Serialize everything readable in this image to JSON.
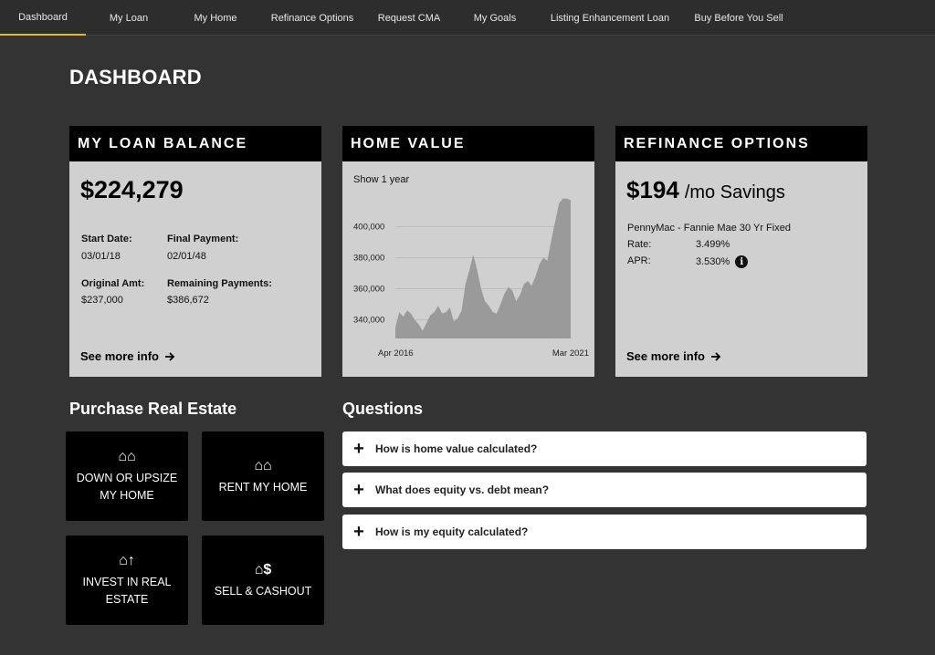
{
  "nav": {
    "items": [
      {
        "label": "Dashboard"
      },
      {
        "label": "My Loan"
      },
      {
        "label": "My Home"
      },
      {
        "label": "Refinance Options"
      },
      {
        "label": "Request CMA"
      },
      {
        "label": "My Goals"
      },
      {
        "label": "Listing Enhancement Loan"
      },
      {
        "label": "Buy Before You Sell"
      }
    ],
    "active_color": "#e7b820"
  },
  "page_title": "DASHBOARD",
  "loan_card": {
    "title": "MY LOAN BALANCE",
    "balance": "$224,279",
    "start_date_label": "Start Date:",
    "start_date": "03/01/18",
    "final_payment_label": "Final Payment:",
    "final_payment": "02/01/48",
    "original_amt_label": "Original Amt:",
    "original_amt": "$237,000",
    "remaining_label": "Remaining Payments:",
    "remaining": "$386,672",
    "see_more": "See more info"
  },
  "home_card": {
    "title": "HOME VALUE",
    "show_label": "Show 1 year"
  },
  "chart_data": {
    "type": "area",
    "x_start_label": "Apr 2016",
    "x_end_label": "Mar 2021",
    "yticks": [
      "400,000",
      "380,000",
      "360,000",
      "340,000"
    ],
    "ylim": [
      328000,
      422000
    ],
    "values": [
      335000,
      345000,
      342000,
      346000,
      344000,
      340000,
      337000,
      333000,
      338000,
      343000,
      345000,
      349000,
      344000,
      345000,
      348000,
      339000,
      341000,
      346000,
      363000,
      372000,
      382000,
      372000,
      360000,
      352000,
      349000,
      345000,
      344000,
      350000,
      357000,
      361000,
      359000,
      352000,
      356000,
      363000,
      365000,
      362000,
      368000,
      376000,
      380000,
      378000,
      391000,
      403000,
      415000,
      418000,
      418000,
      417000
    ],
    "color": "#9a9a9a"
  },
  "refi_card": {
    "title": "REFINANCE OPTIONS",
    "amount": "$194",
    "suffix": "/mo Savings",
    "lender": "PennyMac - Fannie Mae 30 Yr Fixed",
    "rate_label": "Rate:",
    "rate": "3.499%",
    "apr_label": "APR:",
    "apr": "3.530%",
    "info_glyph": "i",
    "see_more": "See more info"
  },
  "purchase": {
    "title": "Purchase Real Estate",
    "tiles": [
      {
        "icon": "⌂⌂",
        "label": "DOWN OR UPSIZE MY HOME"
      },
      {
        "icon": "⌂⌂",
        "label": "RENT MY HOME"
      },
      {
        "icon": "⌂↑",
        "label": "INVEST IN REAL ESTATE"
      },
      {
        "icon": "⌂$",
        "label": "SELL & CASHOUT"
      }
    ]
  },
  "questions": {
    "title": "Questions",
    "items": [
      {
        "text": "How is home value calculated?"
      },
      {
        "text": "What does equity vs. debt mean?"
      },
      {
        "text": "How is my equity calculated?"
      }
    ]
  }
}
